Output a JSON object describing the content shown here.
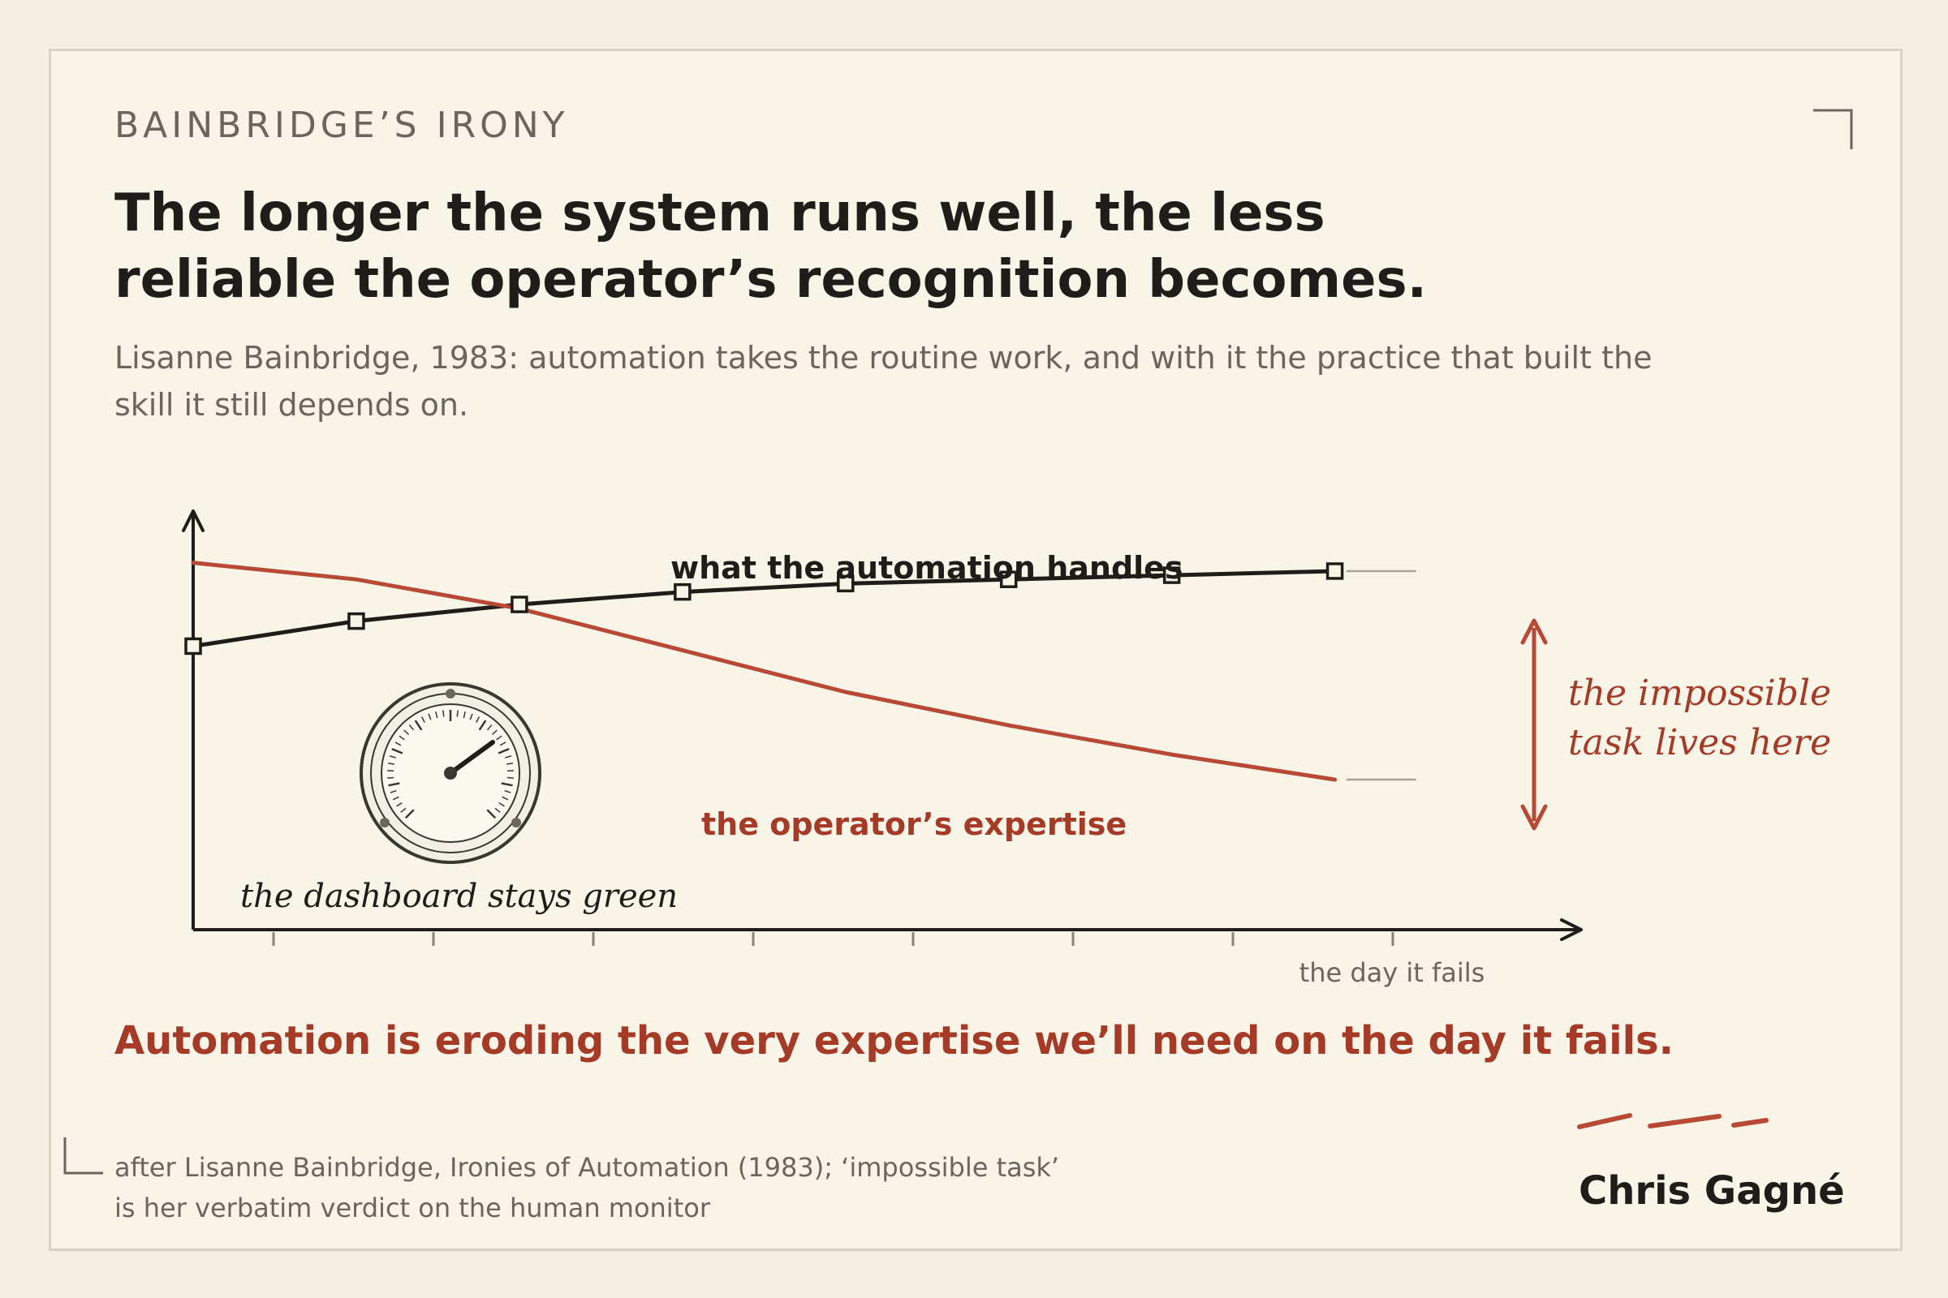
{
  "header": {
    "eyebrow": "BAINBRIDGE’S IRONY",
    "headline_line1": "The longer the system runs well, the less",
    "headline_line2": "reliable the operator’s recognition becomes.",
    "subtitle_line1": "Lisanne Bainbridge, 1983: automation takes the routine work, and with it the practice that built the",
    "subtitle_line2": "skill it still depends on."
  },
  "annotations": {
    "impossible_line1": "the impossible",
    "impossible_line2": "task lives here",
    "dashboard": "the dashboard stays green",
    "x_end": "the day it fails"
  },
  "conclusion": "Automation is eroding the very expertise we’ll need on the day it fails.",
  "footer": {
    "source_line1": "after Lisanne Bainbridge, Ironies of Automation (1983); ‘impossible task’",
    "source_line2": "is her verbatim verdict on the human monitor",
    "author": "Chris Gagné"
  },
  "colors": {
    "automation": "#1f1d19",
    "expertise": "#b84a35",
    "accent": "#a53a27",
    "muted": "#6b665b",
    "gauge": "#3a3630"
  },
  "icons": {
    "gauge": "dashboard-gauge-icon",
    "signature_marks": "signature-dashes"
  },
  "chart_data": {
    "type": "line",
    "x": [
      0,
      1,
      2,
      3,
      4,
      5,
      6,
      7
    ],
    "xlim": [
      0,
      8.5
    ],
    "ylim": [
      0,
      100
    ],
    "x_tick_count": 8,
    "xlabel": "",
    "ylabel": "",
    "series": [
      {
        "name": "what the automation handles",
        "role": "automation",
        "marker": "open-square",
        "values": [
          68,
          74,
          78,
          81,
          83,
          84,
          85,
          86
        ]
      },
      {
        "name": "the operator’s expertise",
        "role": "expertise",
        "marker": "none",
        "values": [
          88,
          84,
          77,
          67,
          57,
          49,
          42,
          36
        ]
      }
    ],
    "gap_annotation": "between series at last point"
  }
}
